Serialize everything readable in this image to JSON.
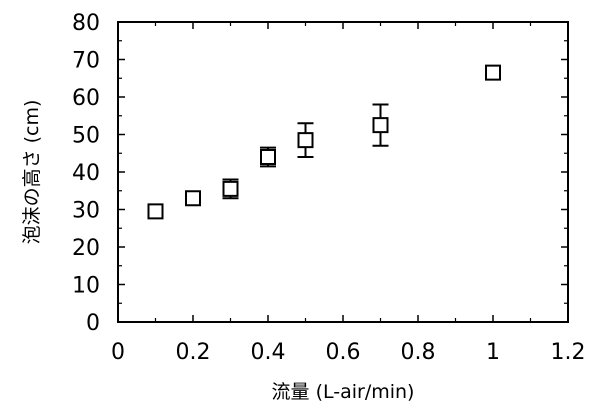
{
  "chart_data": {
    "type": "scatter",
    "xlabel": "流量 (L-air/min)",
    "ylabel": "泡沫の高さ (cm)",
    "xlim": [
      0,
      1.2
    ],
    "ylim": [
      0,
      80
    ],
    "xticks": [
      "0",
      "0.2",
      "0.4",
      "0.6",
      "0.8",
      "1",
      "1.2"
    ],
    "yticks": [
      "0",
      "10",
      "20",
      "30",
      "40",
      "50",
      "60",
      "70",
      "80"
    ],
    "grid": false,
    "marker": "open-square",
    "series": [
      {
        "points": [
          {
            "x": 0.1,
            "y": 29.5,
            "err": 1.0
          },
          {
            "x": 0.2,
            "y": 33.0,
            "err": 1.5
          },
          {
            "x": 0.3,
            "y": 35.5,
            "err": 2.5
          },
          {
            "x": 0.4,
            "y": 44.0,
            "err": 2.5
          },
          {
            "x": 0.5,
            "y": 48.5,
            "err": 4.5
          },
          {
            "x": 0.7,
            "y": 52.5,
            "err": 5.5
          },
          {
            "x": 1.0,
            "y": 66.5,
            "err": 1.0
          }
        ]
      }
    ]
  }
}
